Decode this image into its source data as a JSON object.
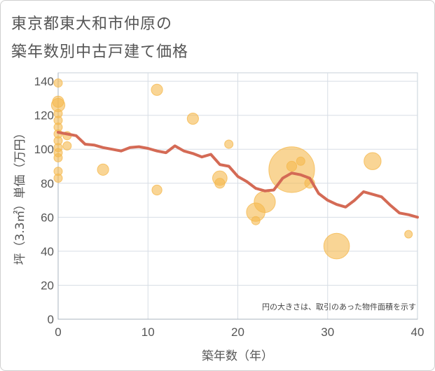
{
  "chart_data": {
    "type": "scatter",
    "title_line1": "東京都東大和市仲原の",
    "title_line2": "築年数別中古戸建て価格",
    "xlabel": "築年数（年）",
    "ylabel": "坪（3.3㎡）単価（万円）",
    "xlim": [
      0,
      40
    ],
    "ylim": [
      0,
      145
    ],
    "xticks": [
      0,
      10,
      20,
      30,
      40
    ],
    "yticks": [
      0,
      20,
      40,
      60,
      80,
      100,
      120,
      140
    ],
    "note": "円の大きさは、取引のあった物件面積を示す",
    "bubble_color": "#f5b94f",
    "line_color": "#d46a55",
    "bubbles": [
      {
        "x": 0,
        "y": 139,
        "size": 1
      },
      {
        "x": 0,
        "y": 128,
        "size": 2
      },
      {
        "x": 0,
        "y": 126,
        "size": 3
      },
      {
        "x": 0,
        "y": 121,
        "size": 1
      },
      {
        "x": 0,
        "y": 117,
        "size": 1
      },
      {
        "x": 0,
        "y": 113,
        "size": 1
      },
      {
        "x": 0,
        "y": 109,
        "size": 1
      },
      {
        "x": 0,
        "y": 105,
        "size": 1
      },
      {
        "x": 0,
        "y": 101,
        "size": 1
      },
      {
        "x": 0,
        "y": 98,
        "size": 1
      },
      {
        "x": 0,
        "y": 95,
        "size": 1
      },
      {
        "x": 0,
        "y": 87,
        "size": 1
      },
      {
        "x": 0,
        "y": 83,
        "size": 1
      },
      {
        "x": 1,
        "y": 108,
        "size": 1
      },
      {
        "x": 1,
        "y": 102,
        "size": 1
      },
      {
        "x": 5,
        "y": 88,
        "size": 2
      },
      {
        "x": 11,
        "y": 135,
        "size": 2
      },
      {
        "x": 11,
        "y": 76,
        "size": 1.5
      },
      {
        "x": 15,
        "y": 118,
        "size": 2
      },
      {
        "x": 18,
        "y": 83,
        "size": 3.5
      },
      {
        "x": 18,
        "y": 80,
        "size": 1.5
      },
      {
        "x": 19,
        "y": 103,
        "size": 1
      },
      {
        "x": 22,
        "y": 63,
        "size": 6
      },
      {
        "x": 22,
        "y": 58,
        "size": 1
      },
      {
        "x": 23,
        "y": 69,
        "size": 8
      },
      {
        "x": 26,
        "y": 88,
        "size": 40
      },
      {
        "x": 26,
        "y": 90,
        "size": 1.5
      },
      {
        "x": 27,
        "y": 93,
        "size": 1
      },
      {
        "x": 28,
        "y": 80,
        "size": 1.5
      },
      {
        "x": 31,
        "y": 43,
        "size": 12
      },
      {
        "x": 35,
        "y": 93,
        "size": 5
      },
      {
        "x": 39,
        "y": 50,
        "size": 0.8
      }
    ],
    "trend": {
      "x": [
        0,
        1,
        2,
        3,
        4,
        5,
        6,
        7,
        8,
        9,
        10,
        11,
        12,
        13,
        14,
        15,
        16,
        17,
        18,
        19,
        20,
        21,
        22,
        23,
        24,
        25,
        26,
        27,
        28,
        29,
        30,
        31,
        32,
        33,
        34,
        35,
        36,
        37,
        38,
        39,
        40
      ],
      "y": [
        110,
        109,
        108,
        103,
        102.5,
        101,
        100,
        99,
        101,
        101.5,
        100.5,
        99,
        98,
        102,
        99,
        97.5,
        95.5,
        97,
        91,
        90,
        84,
        81,
        77,
        75.5,
        76,
        83,
        86,
        85,
        83,
        74,
        70,
        67.5,
        66,
        70,
        75,
        73.5,
        72,
        67,
        62.5,
        61.5,
        60
      ]
    }
  }
}
